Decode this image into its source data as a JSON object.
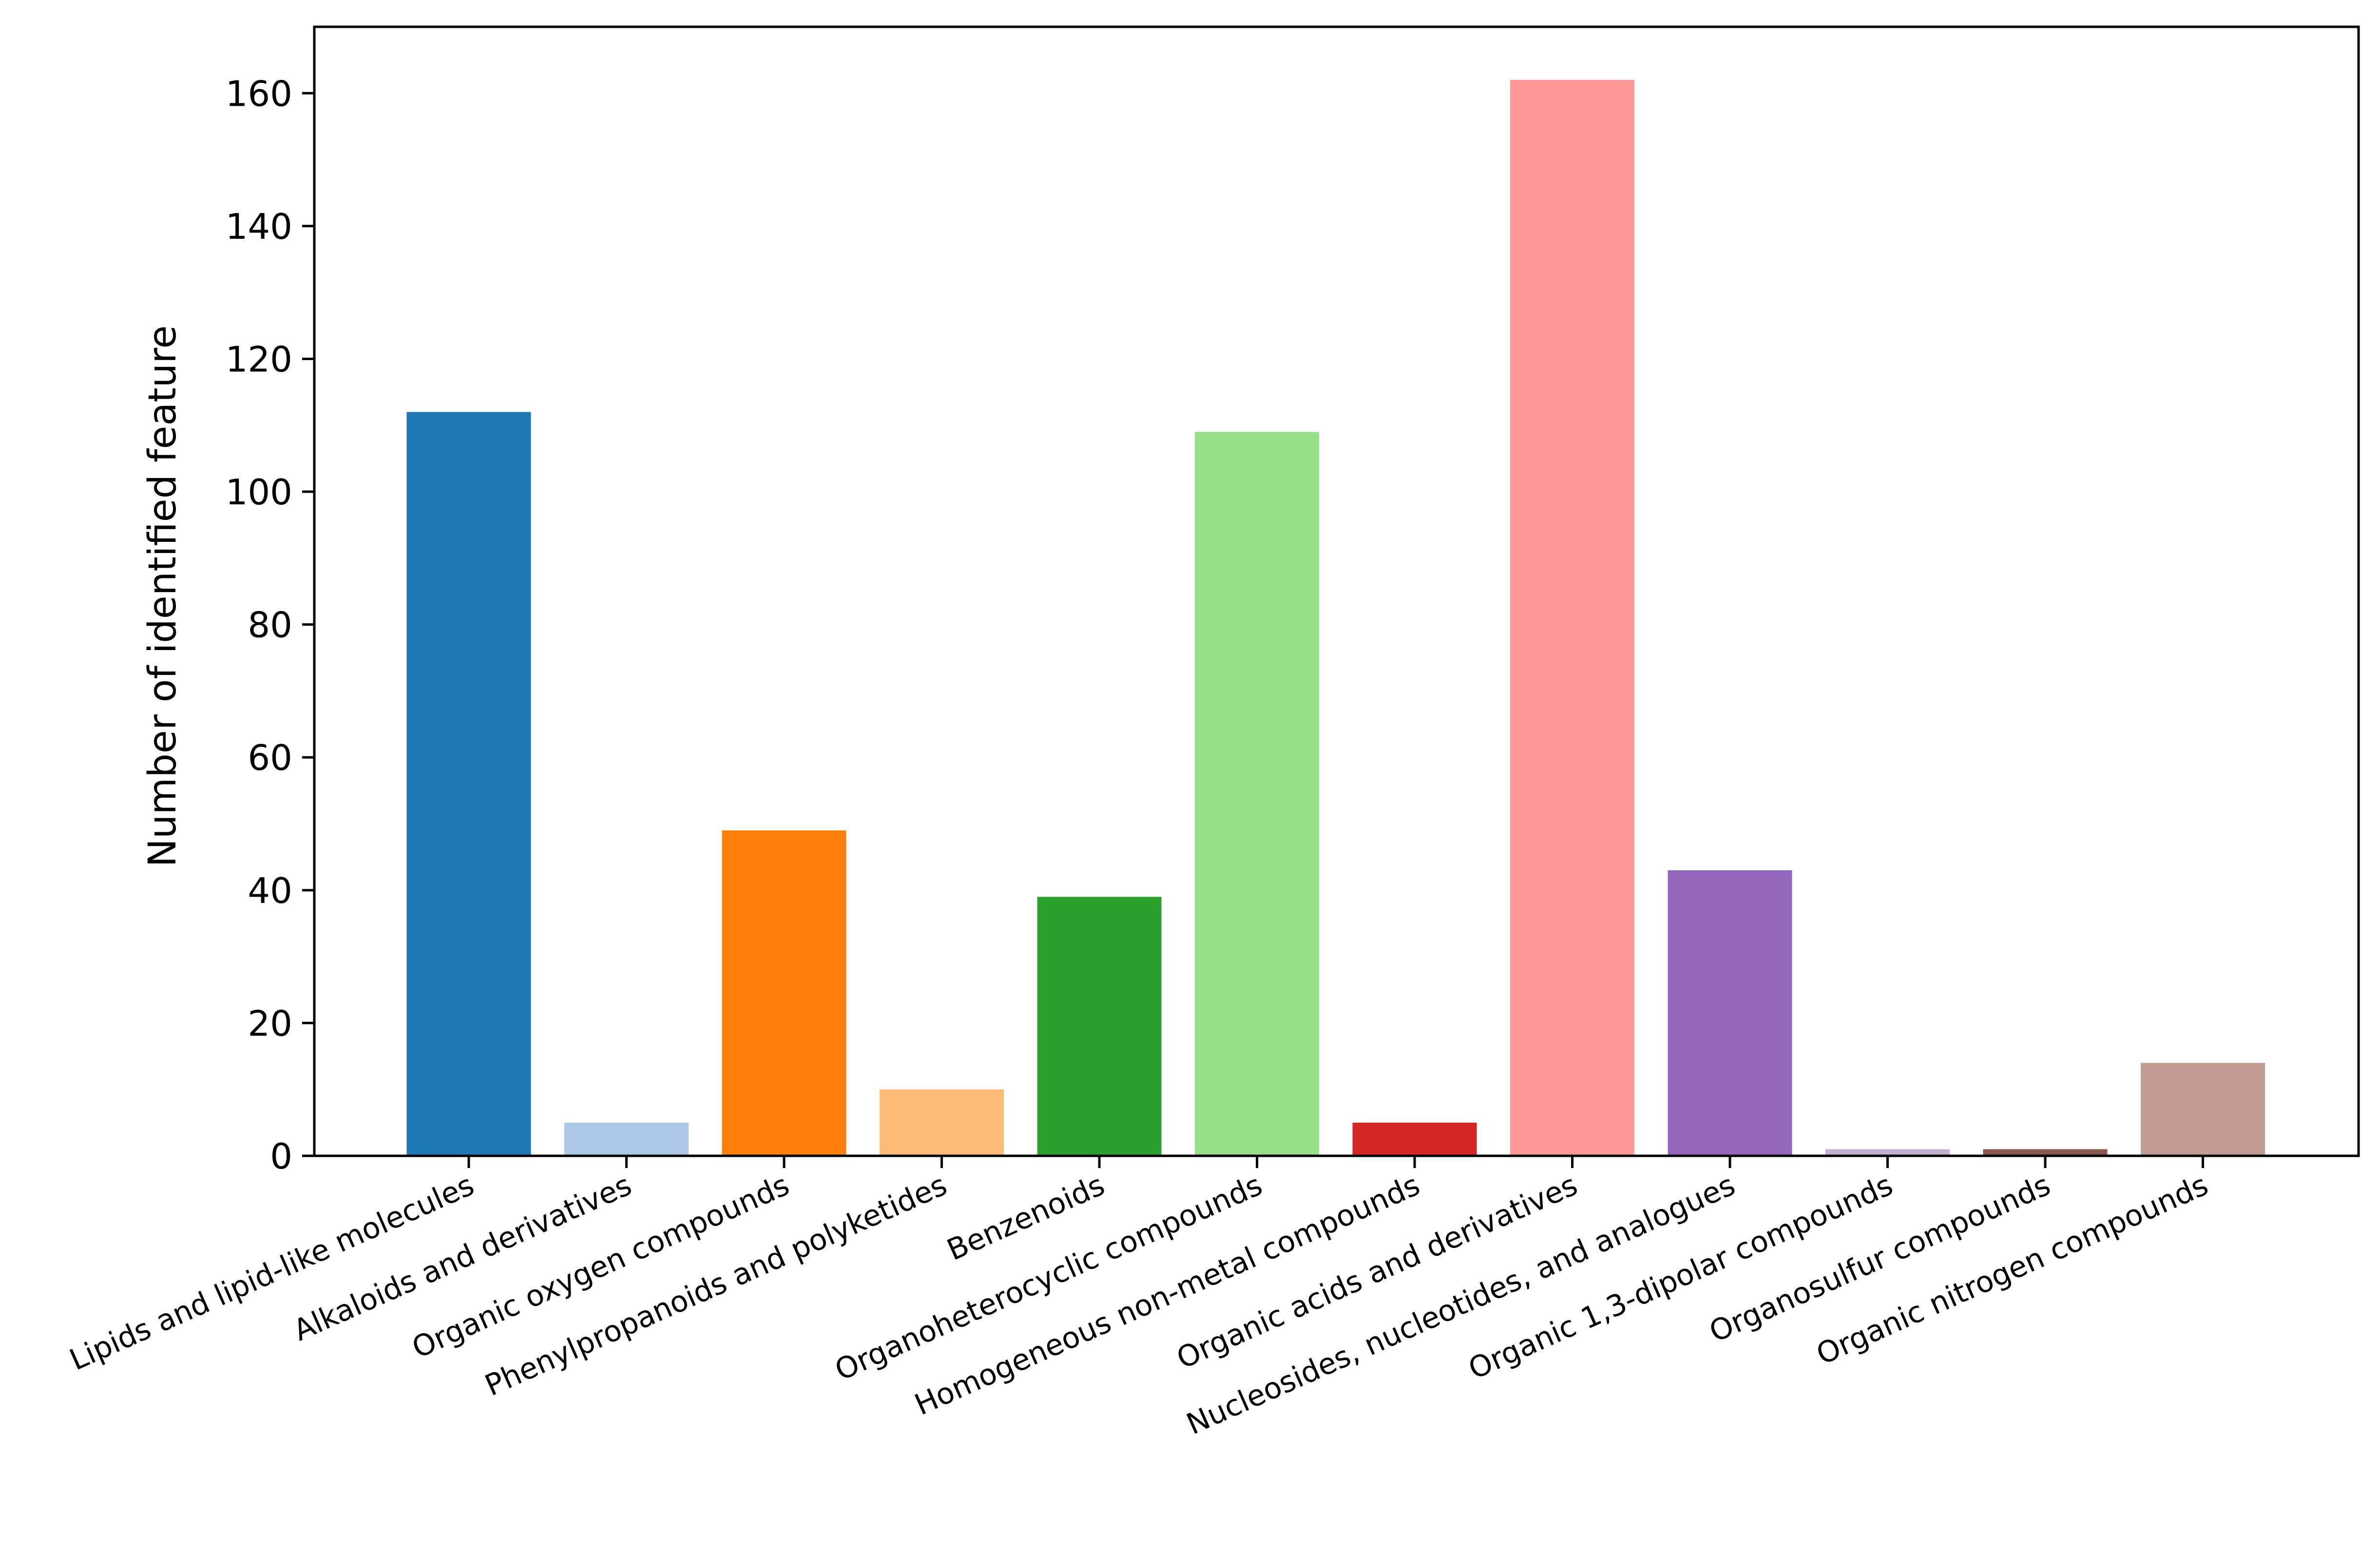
{
  "chart_data": {
    "type": "bar",
    "title": "",
    "xlabel": "",
    "ylabel": "Number of identified feature",
    "ylim": [
      0,
      170
    ],
    "yticks": [
      0,
      20,
      40,
      60,
      80,
      100,
      120,
      140,
      160
    ],
    "categories": [
      "Lipids and lipid-like molecules",
      "Alkaloids and derivatives",
      "Organic oxygen compounds",
      "Phenylpropanoids and polyketides",
      "Benzenoids",
      "Organoheterocyclic compounds",
      "Homogeneous non-metal compounds",
      "Organic acids and derivatives",
      "Nucleosides, nucleotides, and analogues",
      "Organic 1,3-dipolar compounds",
      "Organosulfur compounds",
      "Organic nitrogen compounds"
    ],
    "values": [
      112,
      5,
      49,
      10,
      39,
      109,
      5,
      162,
      43,
      1,
      1,
      14
    ],
    "colors": [
      "#1f77b4",
      "#aec7e8",
      "#ff7f0e",
      "#ffbb78",
      "#2ca02c",
      "#98df8a",
      "#d62728",
      "#ff9896",
      "#9467bd",
      "#c5b0d5",
      "#8c564b",
      "#c49c94"
    ],
    "grid": false,
    "legend": "none"
  }
}
